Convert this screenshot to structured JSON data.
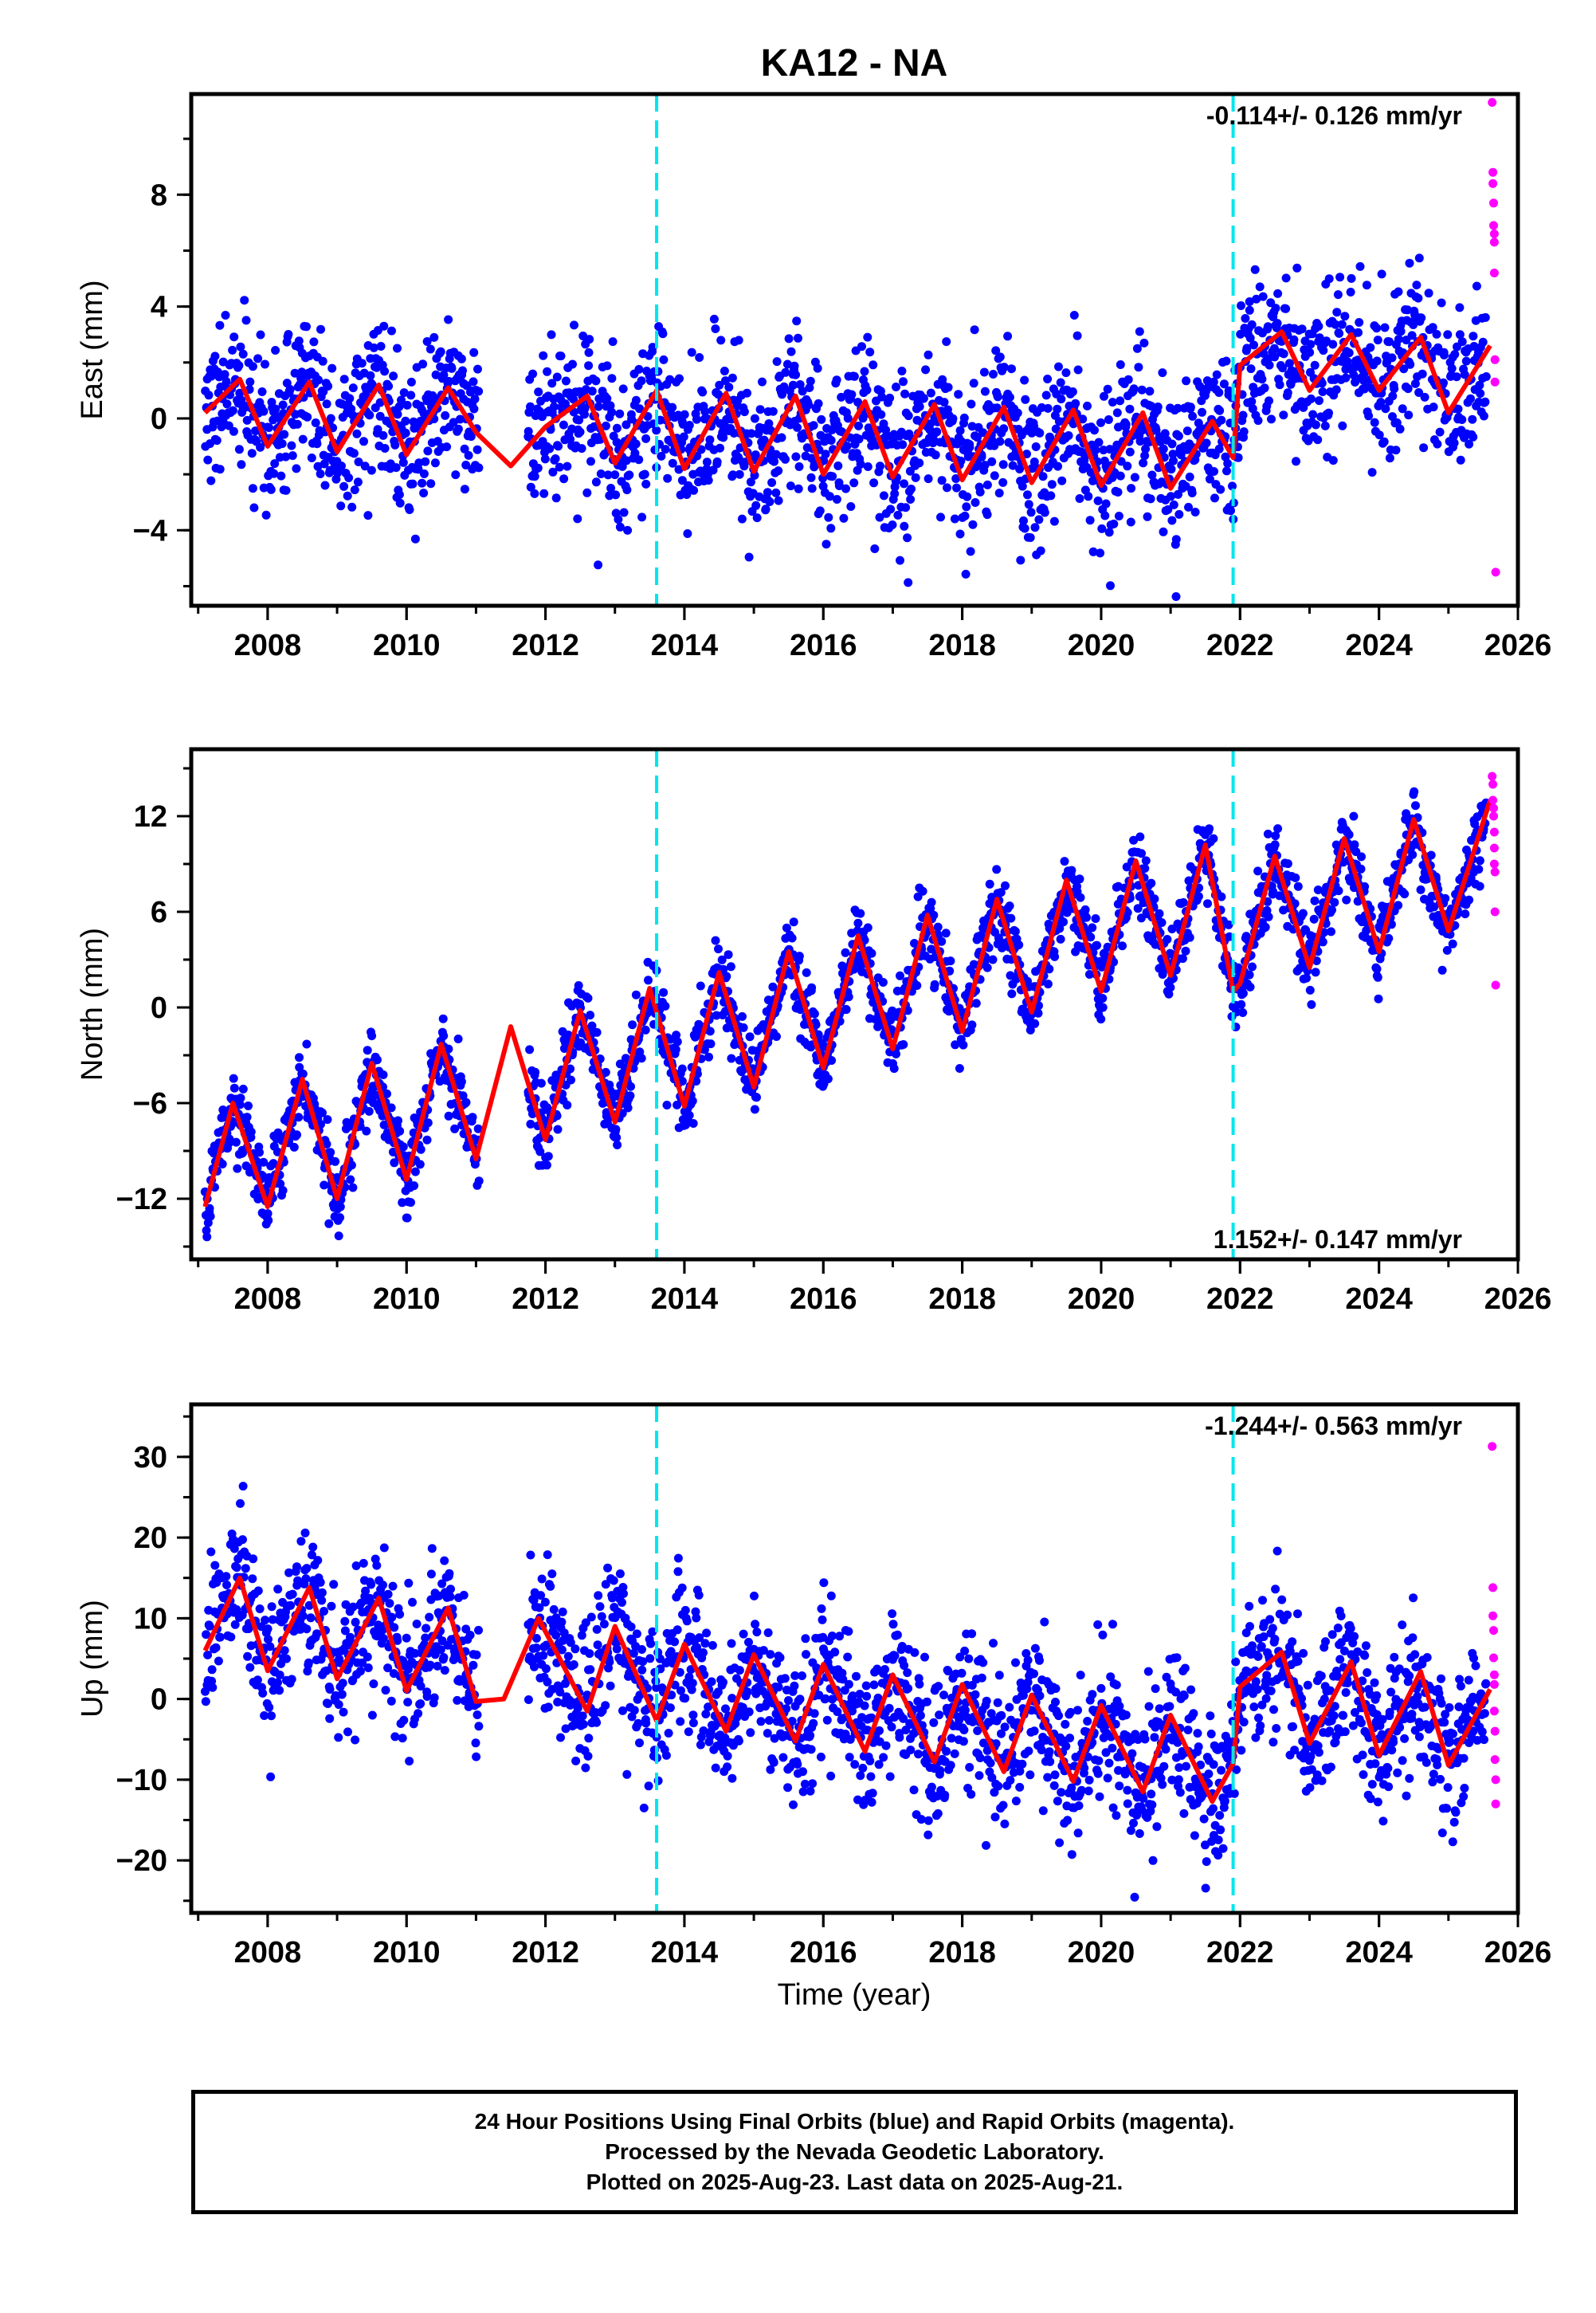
{
  "title": "KA12 - NA",
  "xlabel": "Time (year)",
  "caption": [
    "24 Hour Positions Using Final Orbits (blue) and Rapid Orbits (magenta).",
    "Processed by the Nevada Geodetic Laboratory.",
    "Plotted on 2025-Aug-23. Last data on 2025-Aug-21."
  ],
  "colors": {
    "final_orbits": "#0000ff",
    "rapid_orbits": "#ff00ff",
    "model_fit": "#ff0000",
    "equipment_change": "#00e5ee"
  },
  "chart_data": [
    {
      "type": "scatter",
      "component": "East",
      "ylabel": "East (mm)",
      "xlim": [
        2006.9,
        2026.0
      ],
      "ylim": [
        -6.7,
        11.6
      ],
      "xticks": [
        2008,
        2010,
        2012,
        2014,
        2016,
        2018,
        2020,
        2022,
        2024,
        2026
      ],
      "yticks": [
        -4,
        0,
        4,
        8
      ],
      "velocity_label": "-0.114+/- 0.126 mm/yr",
      "velocity_label_position": "top-right",
      "grid": false,
      "series": [
        {
          "name": "Final Orbits",
          "style": "points",
          "color": "#0000ff",
          "x_range": [
            2007.1,
            2025.55
          ],
          "median": 0.2,
          "scatter_approx": 1.4,
          "gaps": [
            [
              2011.05,
              2011.75
            ]
          ],
          "x": [
            2007.6,
            2008.0,
            2008.5,
            2009.0,
            2009.5,
            2010.0,
            2010.5,
            2011.0,
            2012.0,
            2012.5,
            2013.0,
            2013.5,
            2014.0,
            2014.5,
            2015.0,
            2015.5,
            2016.0,
            2016.5,
            2017.0,
            2017.5,
            2018.0,
            2018.5,
            2019.0,
            2019.5,
            2020.0,
            2020.5,
            2021.0,
            2021.5,
            2022.0,
            2022.5,
            2023.0,
            2023.5,
            2024.0,
            2024.5,
            2025.0,
            2025.5
          ],
          "y": [
            1.2,
            0.2,
            0.6,
            -0.6,
            0.5,
            -0.8,
            0.4,
            -0.6,
            -0.5,
            0.3,
            -0.6,
            -0.5,
            0.4,
            0.1,
            -0.6,
            0.2,
            -0.8,
            0.1,
            -0.4,
            -0.9,
            -0.7,
            -0.6,
            -0.8,
            -0.5,
            -0.9,
            -1.4,
            -1.2,
            -1.6,
            1.4,
            2.0,
            1.4,
            1.8,
            2.2,
            1.6,
            1.5,
            1.0
          ]
        },
        {
          "name": "Rapid Orbits",
          "style": "points",
          "color": "#ff00ff",
          "x": [
            2025.63,
            2025.64,
            2025.64,
            2025.65,
            2025.65,
            2025.66,
            2025.66,
            2025.66,
            2025.67,
            2025.67,
            2025.68
          ],
          "y": [
            11.3,
            8.8,
            8.4,
            7.7,
            6.9,
            6.6,
            6.3,
            5.2,
            2.1,
            1.3,
            -5.5
          ]
        },
        {
          "name": "Model",
          "style": "line",
          "color": "#ff0000",
          "offset_before_2021.9": -0.2,
          "offset_after_2021.9": 1.2,
          "annual_amplitude": 1.2,
          "trend_mm_per_yr": -0.114,
          "x": [
            2007.1,
            2007.6,
            2008.0,
            2008.6,
            2009.0,
            2009.6,
            2010.0,
            2010.6,
            2011.0,
            2011.5,
            2012.0,
            2012.6,
            2013.0,
            2013.6,
            2014.0,
            2014.6,
            2015.0,
            2015.6,
            2016.0,
            2016.6,
            2017.0,
            2017.6,
            2018.0,
            2018.6,
            2019.0,
            2019.6,
            2020.0,
            2020.6,
            2021.0,
            2021.6,
            2021.9,
            2022.0,
            2022.6,
            2023.0,
            2023.6,
            2024.0,
            2024.6,
            2025.0,
            2025.6
          ],
          "y": [
            0.2,
            1.4,
            -1.0,
            1.3,
            -1.2,
            1.2,
            -1.3,
            1.1,
            -0.5,
            -1.7,
            -0.3,
            0.8,
            -1.6,
            1.0,
            -1.8,
            0.9,
            -1.9,
            0.8,
            -2.0,
            0.6,
            -2.1,
            0.5,
            -2.2,
            0.4,
            -2.3,
            0.3,
            -2.4,
            0.2,
            -2.5,
            -0.1,
            -1.4,
            1.9,
            3.1,
            1.0,
            3.0,
            1.0,
            2.9,
            0.2,
            2.6
          ]
        }
      ],
      "equipment_changes": [
        2013.6,
        2021.9
      ]
    },
    {
      "type": "scatter",
      "component": "North",
      "ylabel": "North (mm)",
      "xlim": [
        2006.9,
        2026.0
      ],
      "ylim": [
        -15.8,
        16.2
      ],
      "xticks": [
        2008,
        2010,
        2012,
        2014,
        2016,
        2018,
        2020,
        2022,
        2024,
        2026
      ],
      "yticks": [
        -12,
        -6,
        0,
        6,
        12
      ],
      "velocity_label": "1.152+/- 0.147 mm/yr",
      "velocity_label_position": "bottom-right",
      "grid": false,
      "series": [
        {
          "name": "Final Orbits",
          "style": "points",
          "color": "#0000ff",
          "x_range": [
            2007.1,
            2025.55
          ],
          "scatter_approx": 1.2,
          "gaps": [
            [
              2011.05,
              2011.75
            ]
          ],
          "x": [
            2007.5,
            2008.0,
            2008.5,
            2009.0,
            2009.5,
            2010.0,
            2010.5,
            2011.0,
            2012.0,
            2012.5,
            2013.0,
            2013.5,
            2014.0,
            2014.5,
            2015.0,
            2015.5,
            2016.0,
            2016.5,
            2017.0,
            2017.5,
            2018.0,
            2018.5,
            2019.0,
            2019.5,
            2020.0,
            2020.5,
            2021.0,
            2021.5,
            2022.0,
            2022.5,
            2023.0,
            2023.5,
            2024.0,
            2024.5,
            2025.0,
            2025.5
          ],
          "y": [
            -6.0,
            -12.0,
            -5.0,
            -11.5,
            -4.0,
            -10.5,
            -3.0,
            -9.5,
            -8.0,
            -1.0,
            -7.0,
            1.0,
            -5.5,
            2.0,
            -4.5,
            3.0,
            -3.5,
            4.0,
            -2.5,
            5.5,
            -1.5,
            6.5,
            -0.5,
            8.0,
            1.0,
            9.0,
            2.0,
            10.0,
            1.5,
            9.5,
            2.5,
            10.5,
            3.5,
            12.0,
            4.5,
            13.0
          ]
        },
        {
          "name": "Rapid Orbits",
          "style": "points",
          "color": "#ff00ff",
          "x": [
            2025.63,
            2025.64,
            2025.64,
            2025.65,
            2025.65,
            2025.66,
            2025.66,
            2025.66,
            2025.67,
            2025.67,
            2025.68
          ],
          "y": [
            14.5,
            14.0,
            13.0,
            12.5,
            12.0,
            11.0,
            10.0,
            9.0,
            8.5,
            6.0,
            1.4
          ]
        },
        {
          "name": "Model",
          "style": "line",
          "color": "#ff0000",
          "trend_mm_per_yr": 1.152,
          "annual_amplitude": 3.3,
          "x": [
            2007.1,
            2007.5,
            2008.0,
            2008.5,
            2009.0,
            2009.5,
            2010.0,
            2010.5,
            2011.0,
            2011.5,
            2012.0,
            2012.5,
            2013.0,
            2013.5,
            2014.0,
            2014.5,
            2015.0,
            2015.5,
            2016.0,
            2016.5,
            2017.0,
            2017.5,
            2018.0,
            2018.5,
            2019.0,
            2019.5,
            2020.0,
            2020.5,
            2021.0,
            2021.5,
            2021.9,
            2022.0,
            2022.5,
            2023.0,
            2023.5,
            2024.0,
            2024.5,
            2025.0,
            2025.6
          ],
          "y": [
            -12.5,
            -6.0,
            -12.5,
            -4.5,
            -12.0,
            -3.5,
            -10.8,
            -2.3,
            -9.5,
            -1.2,
            -8.3,
            -0.2,
            -7.2,
            1.2,
            -6.2,
            2.2,
            -5.0,
            3.5,
            -3.8,
            4.5,
            -2.6,
            5.8,
            -1.5,
            6.8,
            -0.3,
            8.0,
            1.0,
            9.2,
            2.0,
            10.2,
            1.0,
            1.5,
            9.5,
            2.5,
            10.6,
            3.5,
            11.8,
            4.8,
            13.0
          ]
        }
      ],
      "equipment_changes": [
        2013.6,
        2021.9
      ]
    },
    {
      "type": "scatter",
      "component": "Up",
      "ylabel": "Up (mm)",
      "xlim": [
        2006.9,
        2026.0
      ],
      "ylim": [
        -26.5,
        36.5
      ],
      "xticks": [
        2008,
        2010,
        2012,
        2014,
        2016,
        2018,
        2020,
        2022,
        2024,
        2026
      ],
      "yticks": [
        -20,
        -10,
        0,
        10,
        20,
        30
      ],
      "velocity_label": "-1.244+/- 0.563 mm/yr",
      "velocity_label_position": "top-right",
      "grid": false,
      "series": [
        {
          "name": "Final Orbits",
          "style": "points",
          "color": "#0000ff",
          "x_range": [
            2007.1,
            2025.55
          ],
          "scatter_approx": 4.5,
          "gaps": [
            [
              2011.05,
              2011.75
            ]
          ],
          "x": [
            2007.6,
            2008.0,
            2008.6,
            2009.0,
            2009.6,
            2010.0,
            2010.6,
            2011.0,
            2012.0,
            2012.6,
            2013.0,
            2013.6,
            2014.0,
            2014.6,
            2015.0,
            2015.6,
            2016.0,
            2016.6,
            2017.0,
            2017.6,
            2018.0,
            2018.6,
            2019.0,
            2019.6,
            2020.0,
            2020.6,
            2021.0,
            2021.6,
            2022.0,
            2022.6,
            2023.0,
            2023.6,
            2024.0,
            2024.6,
            2025.0,
            2025.5
          ],
          "y": [
            15.0,
            4.0,
            14.0,
            3.0,
            12.5,
            2.0,
            11.0,
            1.0,
            -1.0,
            8.0,
            -3.0,
            6.0,
            -4.5,
            4.5,
            -6.0,
            3.5,
            -7.0,
            2.5,
            -8.0,
            1.0,
            -9.5,
            0.0,
            -10.5,
            -1.5,
            -12.0,
            -2.5,
            -13.0,
            -3.5,
            0.5,
            6.0,
            -4.0,
            5.0,
            -6.0,
            3.5,
            -7.0,
            -4.0
          ]
        },
        {
          "name": "Rapid Orbits",
          "style": "points",
          "color": "#ff00ff",
          "x": [
            2025.63,
            2025.64,
            2025.64,
            2025.65,
            2025.65,
            2025.66,
            2025.66,
            2025.66,
            2025.67,
            2025.67,
            2025.68,
            2025.68
          ],
          "y": [
            31.3,
            13.8,
            10.3,
            8.5,
            5.1,
            3.0,
            1.8,
            -1.5,
            -4.0,
            -7.5,
            -10.0,
            -13.0
          ]
        },
        {
          "name": "Model",
          "style": "line",
          "color": "#ff0000",
          "trend_mm_per_yr": -1.244,
          "annual_amplitude": 5.5,
          "x": [
            2007.1,
            2007.6,
            2008.0,
            2008.6,
            2009.0,
            2009.6,
            2010.0,
            2010.6,
            2011.0,
            2011.4,
            2011.9,
            2012.6,
            2013.0,
            2013.6,
            2014.0,
            2014.6,
            2015.0,
            2015.6,
            2016.0,
            2016.6,
            2017.0,
            2017.6,
            2018.0,
            2018.6,
            2019.0,
            2019.6,
            2020.0,
            2020.6,
            2021.0,
            2021.6,
            2021.9,
            2022.0,
            2022.6,
            2023.0,
            2023.6,
            2024.0,
            2024.6,
            2025.0,
            2025.6
          ],
          "y": [
            6.0,
            15.0,
            3.5,
            13.8,
            2.5,
            12.5,
            1.0,
            11.3,
            -0.3,
            0.0,
            10.0,
            -1.5,
            9.0,
            -2.7,
            6.8,
            -4.0,
            5.5,
            -5.2,
            4.3,
            -6.5,
            3.0,
            -7.8,
            1.8,
            -9.0,
            0.5,
            -10.2,
            -0.8,
            -11.5,
            -2.0,
            -12.7,
            -8.0,
            1.5,
            5.8,
            -5.5,
            4.6,
            -7.0,
            3.4,
            -8.2,
            1.2
          ]
        }
      ],
      "equipment_changes": [
        2013.6,
        2021.9
      ]
    }
  ]
}
